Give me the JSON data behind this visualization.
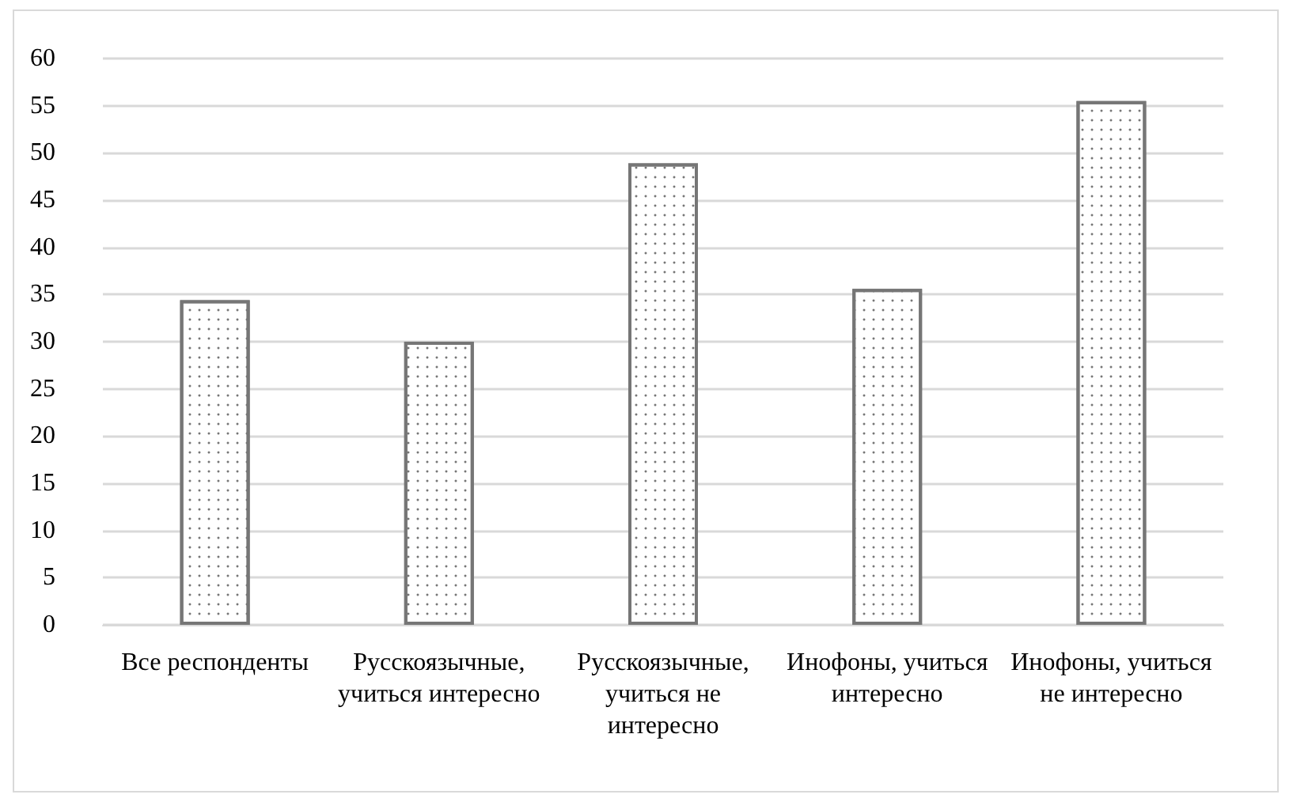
{
  "chart_data": {
    "type": "bar",
    "categories": [
      "Все респонденты",
      "Русскоязычные, учиться интересно",
      "Русскоязычные, учиться не интересно",
      "Инофоны, учиться интересно",
      "Инофоны, учиться не интересно"
    ],
    "values": [
      34.4,
      30,
      48.9,
      35.6,
      55.5
    ],
    "color": "#767676",
    "ylim": [
      0,
      60
    ],
    "yticks": [
      0,
      5,
      10,
      15,
      20,
      25,
      30,
      35,
      40,
      45,
      50,
      55,
      60
    ],
    "grid": "y"
  }
}
